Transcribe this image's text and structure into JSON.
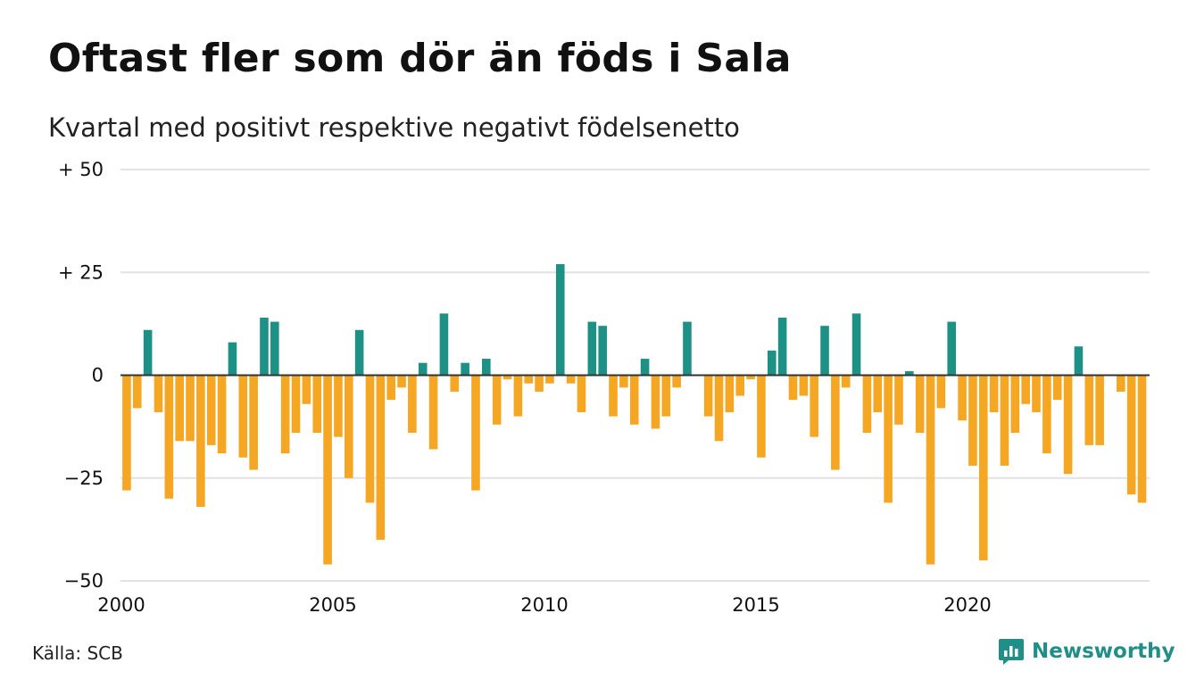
{
  "header": {
    "title": "Oftast fler som dör än föds i Sala",
    "subtitle": "Kvartal med positivt respektive negativt födelsenetto"
  },
  "footer": {
    "source": "Källa: SCB",
    "brand": "Newsworthy"
  },
  "colors": {
    "positive": "#1e9186",
    "negative": "#f5a623",
    "grid": "#e2e2e2",
    "zero_line": "#333333",
    "brand": "#1f8f87"
  },
  "chart_data": {
    "type": "bar",
    "title": "Oftast fler som dör än föds i Sala",
    "subtitle": "Kvartal med positivt respektive negativt födelsenetto",
    "xlabel": "",
    "ylabel": "",
    "ylim": [
      -50,
      50
    ],
    "grid": true,
    "y_ticks": [
      {
        "value": 50,
        "label": "+ 50"
      },
      {
        "value": 25,
        "label": "+ 25"
      },
      {
        "value": 0,
        "label": "0"
      },
      {
        "value": -25,
        "label": "−25"
      },
      {
        "value": -50,
        "label": "−50"
      }
    ],
    "x_ticks": [
      {
        "value": 2000,
        "label": "2000"
      },
      {
        "value": 2005,
        "label": "2005"
      },
      {
        "value": 2010,
        "label": "2010"
      },
      {
        "value": 2015,
        "label": "2015"
      },
      {
        "value": 2020,
        "label": "2020"
      }
    ],
    "x_start": 2000,
    "period": "quarter",
    "values": [
      -28,
      -8,
      11,
      -9,
      -30,
      -16,
      -16,
      -32,
      -17,
      -19,
      8,
      -20,
      -23,
      14,
      13,
      -19,
      -14,
      -7,
      -14,
      -46,
      -15,
      -25,
      11,
      -31,
      -40,
      -6,
      -3,
      -14,
      3,
      -18,
      15,
      -4,
      3,
      -28,
      4,
      -12,
      -1,
      -10,
      -2,
      -4,
      -2,
      27,
      -2,
      -9,
      13,
      12,
      -10,
      -3,
      -12,
      4,
      -13,
      -10,
      -3,
      13,
      0,
      -10,
      -16,
      -9,
      -5,
      -1,
      -20,
      6,
      14,
      -6,
      -5,
      -15,
      12,
      -23,
      -3,
      15,
      -14,
      -9,
      -31,
      -12,
      1,
      -14,
      -46,
      -8,
      13,
      -11,
      -22,
      -45,
      -9,
      -22,
      -14,
      -7,
      -9,
      -19,
      -6,
      -24,
      7,
      -17,
      -17,
      0,
      -4,
      -29,
      -31
    ]
  }
}
